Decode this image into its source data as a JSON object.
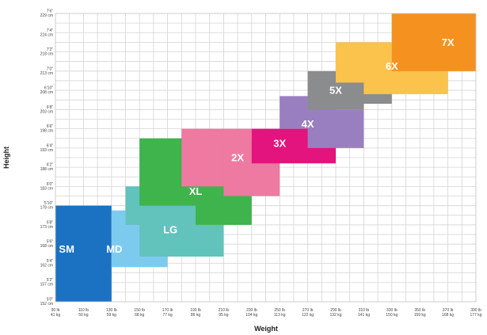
{
  "chart_data": {
    "type": "heatmap",
    "xlabel": "Weight",
    "ylabel": "Height",
    "grid": true,
    "x_ticks": [
      {
        "lb": "90 lb",
        "kg": "41 kg",
        "value": 90
      },
      {
        "lb": "110 lb",
        "kg": "50 kg",
        "value": 110
      },
      {
        "lb": "130 lb",
        "kg": "59 kg",
        "value": 130
      },
      {
        "lb": "150 lb",
        "kg": "68 kg",
        "value": 150
      },
      {
        "lb": "170 lb",
        "kg": "77 kg",
        "value": 170
      },
      {
        "lb": "190 lb",
        "kg": "86 kg",
        "value": 190
      },
      {
        "lb": "210 lb",
        "kg": "95 kg",
        "value": 210
      },
      {
        "lb": "230 lb",
        "kg": "104 kg",
        "value": 230
      },
      {
        "lb": "250 lb",
        "kg": "113 kg",
        "value": 250
      },
      {
        "lb": "270 lb",
        "kg": "122 kg",
        "value": 270
      },
      {
        "lb": "290 lb",
        "kg": "132 kg",
        "value": 290
      },
      {
        "lb": "310 lb",
        "kg": "141 kg",
        "value": 310
      },
      {
        "lb": "330 lb",
        "kg": "150 kg",
        "value": 330
      },
      {
        "lb": "350 lb",
        "kg": "159 kg",
        "value": 350
      },
      {
        "lb": "370 lb",
        "kg": "168 kg",
        "value": 370
      },
      {
        "lb": "390 lb",
        "kg": "177 kg",
        "value": 390
      }
    ],
    "y_ticks": [
      {
        "ft": "5'0\"",
        "cm": "152 cm",
        "value": 60
      },
      {
        "ft": "5'2\"",
        "cm": "157 cm",
        "value": 62
      },
      {
        "ft": "5'4\"",
        "cm": "162 cm",
        "value": 64
      },
      {
        "ft": "5'6\"",
        "cm": "168 cm",
        "value": 66
      },
      {
        "ft": "5'8\"",
        "cm": "173 cm",
        "value": 68
      },
      {
        "ft": "5'10\"",
        "cm": "178 cm",
        "value": 70
      },
      {
        "ft": "6'0\"",
        "cm": "183 cm",
        "value": 72
      },
      {
        "ft": "6'2\"",
        "cm": "188 cm",
        "value": 74
      },
      {
        "ft": "6'4\"",
        "cm": "193 cm",
        "value": 76
      },
      {
        "ft": "6'6\"",
        "cm": "198 cm",
        "value": 78
      },
      {
        "ft": "6'8\"",
        "cm": "203 cm",
        "value": 80
      },
      {
        "ft": "6'10\"",
        "cm": "208 cm",
        "value": 82
      },
      {
        "ft": "7'0\"",
        "cm": "213 cm",
        "value": 84
      },
      {
        "ft": "7'2\"",
        "cm": "218 cm",
        "value": 86
      },
      {
        "ft": "7'4\"",
        "cm": "224 cm",
        "value": 88
      },
      {
        "ft": "7'6\"",
        "cm": "229 cm",
        "value": 90
      }
    ],
    "xlim": [
      90,
      390
    ],
    "ylim": [
      60,
      90
    ],
    "sizes": [
      {
        "name": "SM",
        "color": "#1b72c2",
        "label_at": [
          98,
          65.5
        ],
        "rects": [
          {
            "x": [
              90,
              130
            ],
            "y": [
              60,
              70
            ]
          }
        ]
      },
      {
        "name": "MD",
        "color": "#7ccbef",
        "label_at": [
          132,
          65.5
        ],
        "rects": [
          {
            "x": [
              130,
              170
            ],
            "y": [
              63.6,
              69.5
            ]
          }
        ]
      },
      {
        "name": "LG",
        "color": "#62c2bc",
        "label_at": [
          172,
          67.5
        ],
        "rects": [
          {
            "x": [
              140,
              190
            ],
            "y": [
              68,
              72
            ]
          },
          {
            "x": [
              150,
              210
            ],
            "y": [
              64.7,
              68
            ]
          }
        ]
      },
      {
        "name": "XL",
        "color": "#3fb34c",
        "label_at": [
          190,
          71.5
        ],
        "rects": [
          {
            "x": [
              150,
              190
            ],
            "y": [
              70,
              77
            ]
          },
          {
            "x": [
              190,
              230
            ],
            "y": [
              68,
              73.7
            ]
          }
        ]
      },
      {
        "name": "2X",
        "color": "#ee79a1",
        "label_at": [
          220,
          75
        ],
        "rects": [
          {
            "x": [
              180,
              230
            ],
            "y": [
              72,
              78
            ]
          },
          {
            "x": [
              210,
              250
            ],
            "y": [
              71,
              76.6
            ]
          }
        ]
      },
      {
        "name": "3X",
        "color": "#e3147d",
        "label_at": [
          250,
          76.5
        ],
        "rects": [
          {
            "x": [
              230,
              290
            ],
            "y": [
              74.4,
              78
            ]
          }
        ]
      },
      {
        "name": "4X",
        "color": "#9a7fc0",
        "label_at": [
          270,
          78.5
        ],
        "rects": [
          {
            "x": [
              250,
              290
            ],
            "y": [
              78,
              81.4
            ]
          },
          {
            "x": [
              270,
              310
            ],
            "y": [
              76,
              80
            ]
          }
        ]
      },
      {
        "name": "5X",
        "color": "#8b8c8e",
        "label_at": [
          290,
          82
        ],
        "rects": [
          {
            "x": [
              270,
              310
            ],
            "y": [
              80,
              84
            ]
          },
          {
            "x": [
              290,
              330
            ],
            "y": [
              80.6,
              82.8
            ]
          }
        ]
      },
      {
        "name": "6X",
        "color": "#fbc24c",
        "label_at": [
          330,
          84.5
        ],
        "rects": [
          {
            "x": [
              290,
              330
            ],
            "y": [
              82.8,
              87
            ]
          },
          {
            "x": [
              310,
              370
            ],
            "y": [
              81.6,
              85.9
            ]
          }
        ]
      },
      {
        "name": "7X",
        "color": "#f5911f",
        "label_at": [
          370,
          87
        ],
        "rects": [
          {
            "x": [
              330,
              390
            ],
            "y": [
              84,
              90
            ]
          }
        ]
      }
    ]
  }
}
